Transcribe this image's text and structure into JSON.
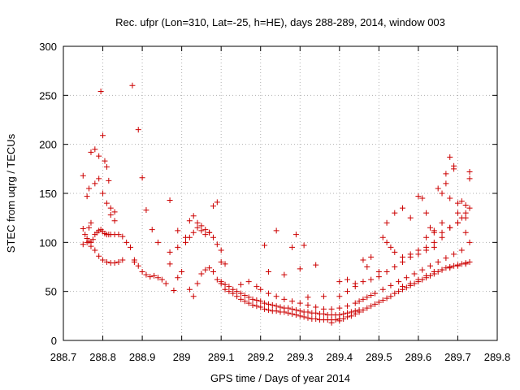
{
  "chart_data": {
    "type": "scatter",
    "title": "Rec. ufpr (Lon=310, Lat=-25, h=HE), days 288-289, 2014, window 003",
    "xlabel": "GPS time / Days of year 2014",
    "ylabel": "STEC from uqrg / TECUs",
    "xlim": [
      288.7,
      289.8
    ],
    "ylim": [
      0,
      300
    ],
    "x_ticks": [
      "288.7",
      "288.8",
      "288.9",
      "289",
      "289.1",
      "289.2",
      "289.3",
      "289.4",
      "289.5",
      "289.6",
      "289.7",
      "289.8"
    ],
    "y_ticks": [
      "0",
      "50",
      "100",
      "150",
      "200",
      "250",
      "300"
    ],
    "grid": true,
    "marker": "+",
    "color": "#cc0000",
    "series": [
      {
        "x": [
          288.75,
          288.755,
          288.76,
          288.765,
          288.77,
          288.775,
          288.78,
          288.785,
          288.79,
          288.795,
          288.8,
          288.805,
          288.81,
          288.815,
          288.82,
          288.83,
          288.84,
          288.85,
          288.86,
          288.87,
          288.88,
          288.89
        ],
        "y": [
          114,
          108,
          104,
          101,
          100,
          103,
          108,
          110,
          112,
          113,
          111,
          109,
          108,
          108,
          108,
          108,
          108,
          106,
          100,
          95,
          80,
          76
        ]
      },
      {
        "x": [
          288.75,
          288.76,
          288.77,
          288.78,
          288.79,
          288.8,
          288.81,
          288.82,
          288.83,
          288.84,
          288.85
        ],
        "y": [
          98,
          100,
          96,
          92,
          86,
          82,
          80,
          79,
          79,
          80,
          82
        ]
      },
      {
        "x": [
          288.75,
          288.76,
          288.765,
          288.77,
          288.78,
          288.79,
          288.8,
          288.805,
          288.81,
          288.815,
          288.82,
          288.83
        ],
        "y": [
          168,
          147,
          155,
          192,
          195,
          188,
          209,
          183,
          177,
          163,
          135,
          131
        ]
      },
      {
        "x": [
          288.765,
          288.77,
          288.78,
          288.79,
          288.8,
          288.81,
          288.82,
          288.83
        ],
        "y": [
          115,
          120,
          160,
          165,
          150,
          140,
          128,
          122
        ]
      },
      {
        "x": [
          288.795,
          288.875,
          288.89,
          288.9,
          288.91,
          288.925,
          288.94,
          288.97,
          288.99
        ],
        "y": [
          254,
          260,
          215,
          166,
          133,
          113,
          100,
          143,
          112
        ]
      },
      {
        "x": [
          288.88,
          288.9,
          288.91,
          288.92,
          288.93,
          288.94,
          288.95,
          288.96,
          288.97,
          288.98,
          288.99,
          289.0
        ],
        "y": [
          82,
          70,
          67,
          65,
          66,
          64,
          62,
          58,
          78,
          51,
          64,
          70
        ]
      },
      {
        "x": [
          288.97,
          288.99,
          289.01,
          289.02,
          289.03,
          289.04,
          289.05,
          289.06,
          289.07,
          289.08,
          289.09,
          289.1
        ],
        "y": [
          90,
          95,
          100,
          105,
          110,
          115,
          112,
          108,
          110,
          105,
          98,
          92
        ]
      },
      {
        "x": [
          289.01,
          289.02,
          289.03,
          289.04,
          289.05,
          289.06,
          289.07,
          289.08,
          289.09,
          289.1,
          289.11
        ],
        "y": [
          105,
          122,
          127,
          120,
          117,
          113,
          110,
          137,
          141,
          80,
          78
        ]
      },
      {
        "x": [
          289.02,
          289.03,
          289.04,
          289.05,
          289.06,
          289.07,
          289.08,
          289.09,
          289.1,
          289.11,
          289.12,
          289.13,
          289.14,
          289.15,
          289.16,
          289.17,
          289.18,
          289.19,
          289.2,
          289.21,
          289.22,
          289.23,
          289.24,
          289.25,
          289.26,
          289.27,
          289.28,
          289.29,
          289.3,
          289.31,
          289.32,
          289.33,
          289.34,
          289.35,
          289.36,
          289.37,
          289.38,
          289.39,
          289.4
        ],
        "y": [
          52,
          45,
          58,
          68,
          72,
          74,
          70,
          62,
          58,
          52,
          50,
          48,
          45,
          42,
          40,
          38,
          36,
          35,
          34,
          32,
          31,
          30,
          30,
          29,
          29,
          28,
          27,
          26,
          25,
          24,
          23,
          22,
          22,
          21,
          21,
          21,
          21,
          21,
          22
        ]
      },
      {
        "x": [
          289.1,
          289.11,
          289.12,
          289.13,
          289.14,
          289.15,
          289.16,
          289.17,
          289.18,
          289.19,
          289.2,
          289.21,
          289.22,
          289.23,
          289.24,
          289.25,
          289.26,
          289.27,
          289.28,
          289.29,
          289.3,
          289.31,
          289.32,
          289.33,
          289.34,
          289.35,
          289.36,
          289.37,
          289.38,
          289.39,
          289.4,
          289.41,
          289.42,
          289.43,
          289.44,
          289.45
        ],
        "y": [
          60,
          57,
          55,
          52,
          50,
          48,
          46,
          44,
          42,
          41,
          40,
          38,
          37,
          36,
          35,
          34,
          33,
          33,
          32,
          31,
          30,
          29,
          29,
          28,
          28,
          27,
          27,
          26,
          26,
          26,
          26,
          27,
          28,
          29,
          30,
          31
        ]
      },
      {
        "x": [
          289.15,
          289.17,
          289.19,
          289.21,
          289.22,
          289.24,
          289.26,
          289.28,
          289.29,
          289.3,
          289.31,
          289.32,
          289.34,
          289.36
        ],
        "y": [
          57,
          60,
          55,
          97,
          70,
          112,
          67,
          95,
          108,
          73,
          97,
          44,
          77,
          45
        ]
      },
      {
        "x": [
          289.2,
          289.22,
          289.24,
          289.26,
          289.28,
          289.3,
          289.32,
          289.34,
          289.36,
          289.38,
          289.4,
          289.42,
          289.44,
          289.46,
          289.48
        ],
        "y": [
          52,
          48,
          45,
          42,
          40,
          38,
          36,
          34,
          32,
          32,
          33,
          35,
          38,
          42,
          46
        ]
      },
      {
        "x": [
          289.38,
          289.4,
          289.41,
          289.42,
          289.43,
          289.44,
          289.45,
          289.46,
          289.47,
          289.48,
          289.49,
          289.5,
          289.51,
          289.52,
          289.53,
          289.54,
          289.55,
          289.56,
          289.57,
          289.58,
          289.59,
          289.6,
          289.61,
          289.62,
          289.63,
          289.64,
          289.65,
          289.66,
          289.67,
          289.68,
          289.69,
          289.7,
          289.71,
          289.72,
          289.73
        ],
        "y": [
          18,
          20,
          22,
          24,
          25,
          27,
          29,
          31,
          33,
          35,
          37,
          39,
          41,
          43,
          45,
          48,
          50,
          52,
          54,
          56,
          58,
          60,
          62,
          64,
          66,
          68,
          70,
          72,
          74,
          75,
          76,
          77,
          78,
          79,
          80
        ]
      },
      {
        "x": [
          289.4,
          289.42,
          289.44,
          289.46,
          289.48,
          289.5,
          289.52,
          289.54,
          289.56,
          289.58,
          289.6,
          289.62,
          289.64,
          289.66,
          289.68,
          289.7,
          289.72,
          289.73
        ],
        "y": [
          45,
          50,
          55,
          60,
          62,
          65,
          70,
          75,
          80,
          85,
          88,
          92,
          95,
          105,
          115,
          120,
          130,
          135
        ]
      },
      {
        "x": [
          289.4,
          289.42,
          289.44,
          289.46,
          289.47,
          289.48,
          289.5,
          289.51,
          289.52,
          289.53,
          289.54,
          289.56,
          289.58,
          289.6,
          289.62,
          289.64,
          289.66,
          289.68,
          289.7,
          289.72
        ],
        "y": [
          60,
          62,
          58,
          82,
          75,
          85,
          70,
          105,
          100,
          95,
          90,
          85,
          88,
          92,
          95,
          100,
          110,
          115,
          120,
          125
        ]
      },
      {
        "x": [
          289.52,
          289.54,
          289.56,
          289.58,
          289.6,
          289.61,
          289.62,
          289.63,
          289.64,
          289.65,
          289.66,
          289.67,
          289.68,
          289.69,
          289.7,
          289.71,
          289.72,
          289.73
        ],
        "y": [
          120,
          130,
          135,
          125,
          147,
          145,
          130,
          115,
          110,
          155,
          150,
          160,
          187,
          175,
          140,
          142,
          138,
          165
        ]
      },
      {
        "x": [
          289.62,
          289.64,
          289.66,
          289.67,
          289.68,
          289.69,
          289.7,
          289.71,
          289.72,
          289.73
        ],
        "y": [
          105,
          112,
          120,
          170,
          145,
          178,
          130,
          125,
          110,
          172
        ]
      },
      {
        "x": [
          289.56,
          289.58,
          289.6,
          289.62,
          289.64,
          289.66,
          289.68,
          289.7,
          289.72,
          289.73
        ],
        "y": [
          55,
          58,
          62,
          66,
          70,
          72,
          74,
          76,
          78,
          100
        ]
      },
      {
        "x": [
          289.45,
          289.47,
          289.49,
          289.51,
          289.53,
          289.55,
          289.57,
          289.59,
          289.61,
          289.63,
          289.65,
          289.67,
          289.69,
          289.71
        ],
        "y": [
          40,
          44,
          48,
          52,
          56,
          60,
          64,
          68,
          72,
          76,
          80,
          84,
          88,
          92
        ]
      }
    ]
  }
}
